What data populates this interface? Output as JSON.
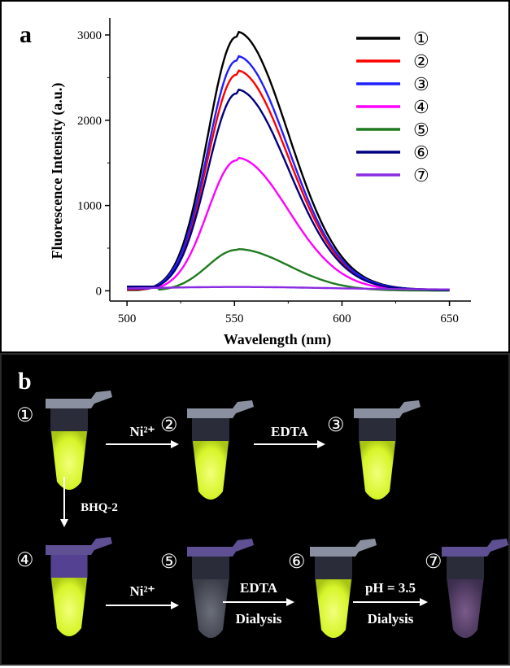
{
  "chart_data": {
    "type": "line",
    "panel_label": "a",
    "xlabel": "Wavelength (nm)",
    "ylabel": "Fluorescence Intensity (a.u.)",
    "xlim": [
      492,
      660
    ],
    "ylim": [
      -120,
      3200
    ],
    "x_ticks": [
      500,
      550,
      600,
      650
    ],
    "y_ticks": [
      0,
      1000,
      2000,
      3000
    ],
    "grid": false,
    "legend_position": "top-right",
    "peak_wavelength": 551,
    "series": [
      {
        "name": "①",
        "color": "#000000",
        "peak": 2980,
        "x_start": 500,
        "x_end": 650
      },
      {
        "name": "②",
        "color": "#ff0000",
        "peak": 2535,
        "x_start": 500,
        "x_end": 650
      },
      {
        "name": "③",
        "color": "#1f1fff",
        "peak": 2700,
        "x_start": 500,
        "x_end": 650
      },
      {
        "name": "④",
        "color": "#ff00ff",
        "peak": 1530,
        "x_start": 500,
        "x_end": 650
      },
      {
        "name": "⑤",
        "color": "#1f7a1f",
        "peak": 480,
        "x_start": 500,
        "x_end": 650
      },
      {
        "name": "⑥",
        "color": "#000080",
        "peak": 2315,
        "x_start": 500,
        "x_end": 650
      },
      {
        "name": "⑦",
        "color": "#8a2be2",
        "peak": 30,
        "x_start": 500,
        "x_end": 650
      }
    ]
  },
  "panel_b": {
    "panel_label": "b",
    "tubes": [
      {
        "num": "①",
        "state": "bright"
      },
      {
        "num": "②",
        "state": "bright"
      },
      {
        "num": "③",
        "state": "bright"
      },
      {
        "num": "④",
        "state": "bright-purple"
      },
      {
        "num": "⑤",
        "state": "quenched"
      },
      {
        "num": "⑥",
        "state": "bright"
      },
      {
        "num": "⑦",
        "state": "quenched-pink"
      }
    ],
    "arrows": {
      "a12": "Ni²⁺",
      "a23": "EDTA",
      "a14": "BHQ-2",
      "a45": "Ni²⁺",
      "a56_top": "EDTA",
      "a56_bottom": "Dialysis",
      "a67_top": "pH = 3.5",
      "a67_bottom": "Dialysis"
    },
    "colors": {
      "glow": "#e6ff3a",
      "purple_glow": "#8a5cff"
    }
  }
}
